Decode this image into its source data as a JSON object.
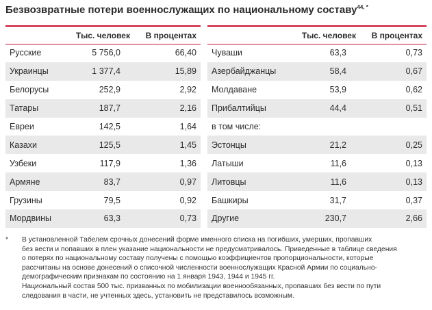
{
  "title": "Безвозвратные потери военнослужащих по национальному составу",
  "title_sup": "44, *",
  "columns": {
    "name": "",
    "thousands": "Тыс. человек",
    "percent": "В процентах"
  },
  "left_rows": [
    {
      "name": "Русские",
      "thousands": "5 756,0",
      "percent": "66,40"
    },
    {
      "name": "Украинцы",
      "thousands": "1 377,4",
      "percent": "15,89"
    },
    {
      "name": "Белорусы",
      "thousands": "252,9",
      "percent": "2,92"
    },
    {
      "name": "Татары",
      "thousands": "187,7",
      "percent": "2,16"
    },
    {
      "name": "Евреи",
      "thousands": "142,5",
      "percent": "1,64"
    },
    {
      "name": "Казахи",
      "thousands": "125,5",
      "percent": "1,45"
    },
    {
      "name": "Узбеки",
      "thousands": "117,9",
      "percent": "1,36"
    },
    {
      "name": "Армяне",
      "thousands": "83,7",
      "percent": "0,97"
    },
    {
      "name": "Грузины",
      "thousands": "79,5",
      "percent": "0,92"
    },
    {
      "name": "Мордвины",
      "thousands": "63,3",
      "percent": "0,73"
    }
  ],
  "right_rows": [
    {
      "name": "Чуваши",
      "thousands": "63,3",
      "percent": "0,73"
    },
    {
      "name": "Азербайджанцы",
      "thousands": "58,4",
      "percent": "0,67"
    },
    {
      "name": "Молдаване",
      "thousands": "53,9",
      "percent": "0,62"
    },
    {
      "name": "Прибалтийцы",
      "thousands": "44,4",
      "percent": "0,51"
    },
    {
      "name": "в том числе:",
      "thousands": "",
      "percent": ""
    },
    {
      "name": "Эстонцы",
      "thousands": "21,2",
      "percent": "0,25"
    },
    {
      "name": "Латыши",
      "thousands": "11,6",
      "percent": "0,13"
    },
    {
      "name": "Литовцы",
      "thousands": "11,6",
      "percent": "0,13"
    },
    {
      "name": "Башкиры",
      "thousands": "31,7",
      "percent": "0,37"
    },
    {
      "name": "Другие",
      "thousands": "230,7",
      "percent": "2,66"
    }
  ],
  "footnote": {
    "marker": "*",
    "text": "В установленной Табелем срочных донесений форме именного списка на погибших, умерших, пропавших\nбез вести и попавших в плен указание национальности не предусматривалось. Приведенные в таблице сведения\nо потерях по национальному составу получены с помощью коэффициентов пропорциональности, которые\nрассчитаны на основе донесений о списочной численности военнослужащих Красной Армии по социально-\nдемографическим признакам по состоянию на 1 января 1943, 1944 и 1945 гг.\nНациональный состав 500 тыс. призванных по мобилизации военнообязанных, пропавших без вести по пути\nследования в части, не учтенных здесь, установить не представилось возможным."
  },
  "colors": {
    "accent": "#c8102e",
    "stripe": "#e9e9e9"
  }
}
